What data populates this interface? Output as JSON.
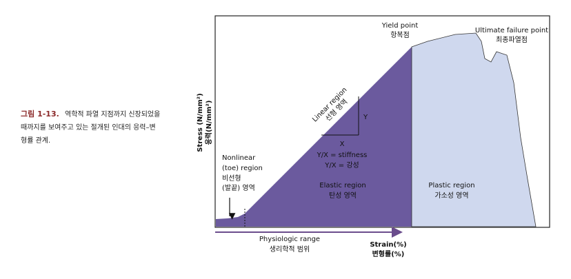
{
  "caption": {
    "label": "그림 1-13.",
    "lines": [
      "역학적 파열 지점까지 신장되었을",
      "때까지를 보여주고 있는 절개된 인대의 응력–변",
      "형률 관계."
    ]
  },
  "axes": {
    "y_label": [
      "Stress (N/mm²)",
      "응력(N/mm²)"
    ],
    "x_label": [
      "Strain(%)",
      "변형률(%)"
    ]
  },
  "annotations": {
    "yield_point": [
      "Yield point",
      "항복점"
    ],
    "ultimate_failure_point": [
      "Ultimate failure point",
      "최종파열점"
    ],
    "linear_region": [
      "Linear region",
      "선형 영역"
    ],
    "triangle_y": "Y",
    "stiffness": [
      "X",
      "Y/X = stiffness",
      "Y/X = 강성"
    ],
    "nonlinear_region": [
      "Nonlinear",
      "(toe) region",
      "비선형",
      "(발끝) 영역"
    ],
    "elastic_region": [
      "Elastic region",
      "탄성 영역"
    ],
    "plastic_region": [
      "Plastic region",
      "가소성 영역"
    ],
    "physiologic_range": [
      "Physiologic range",
      "생리학적 범위"
    ]
  }
}
